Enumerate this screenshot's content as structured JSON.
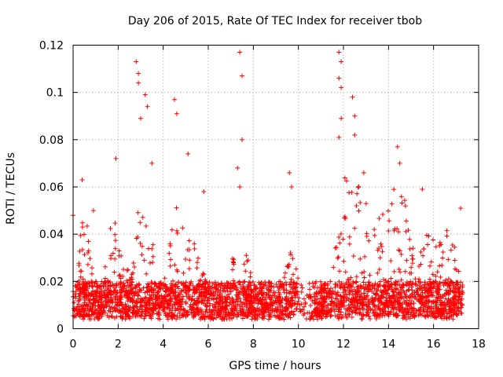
{
  "chart_data": {
    "type": "scatter",
    "title": "Day 206 of 2015, Rate Of TEC Index for receiver tbob",
    "xlabel": "GPS time / hours",
    "ylabel": "ROTI / TECUs",
    "xlim": [
      0,
      18
    ],
    "ylim": [
      0,
      0.12
    ],
    "xticks": [
      0,
      2,
      4,
      6,
      8,
      10,
      12,
      14,
      16,
      18
    ],
    "xtick_labels": [
      "0",
      "2",
      "4",
      "6",
      "8",
      "10",
      "12",
      "14",
      "16",
      "18"
    ],
    "yticks": [
      0,
      0.02,
      0.04,
      0.06,
      0.08,
      0.1,
      0.12
    ],
    "ytick_labels": [
      "0",
      "0.02",
      "0.04",
      "0.06",
      "0.08",
      "0.1",
      "0.12"
    ],
    "grid": true,
    "marker": "+",
    "color": "#ff0000",
    "series": [
      {
        "name": "ROTI",
        "x_range_hours": [
          0,
          17.3
        ],
        "typical_band": [
          0.005,
          0.02
        ],
        "notable_points": [
          {
            "x": 0.0,
            "y": 0.048
          },
          {
            "x": 0.4,
            "y": 0.063
          },
          {
            "x": 0.9,
            "y": 0.05
          },
          {
            "x": 1.9,
            "y": 0.072
          },
          {
            "x": 2.8,
            "y": 0.113
          },
          {
            "x": 2.9,
            "y": 0.108
          },
          {
            "x": 2.9,
            "y": 0.104
          },
          {
            "x": 3.2,
            "y": 0.099
          },
          {
            "x": 3.3,
            "y": 0.094
          },
          {
            "x": 3.0,
            "y": 0.089
          },
          {
            "x": 3.5,
            "y": 0.07
          },
          {
            "x": 4.5,
            "y": 0.097
          },
          {
            "x": 4.6,
            "y": 0.091
          },
          {
            "x": 5.1,
            "y": 0.074
          },
          {
            "x": 5.8,
            "y": 0.058
          },
          {
            "x": 7.4,
            "y": 0.117
          },
          {
            "x": 7.5,
            "y": 0.107
          },
          {
            "x": 7.5,
            "y": 0.08
          },
          {
            "x": 7.3,
            "y": 0.068
          },
          {
            "x": 7.4,
            "y": 0.06
          },
          {
            "x": 9.6,
            "y": 0.066
          },
          {
            "x": 9.7,
            "y": 0.06
          },
          {
            "x": 11.8,
            "y": 0.117
          },
          {
            "x": 11.9,
            "y": 0.113
          },
          {
            "x": 11.8,
            "y": 0.106
          },
          {
            "x": 11.9,
            "y": 0.102
          },
          {
            "x": 11.9,
            "y": 0.089
          },
          {
            "x": 11.8,
            "y": 0.081
          },
          {
            "x": 12.4,
            "y": 0.098
          },
          {
            "x": 12.5,
            "y": 0.09
          },
          {
            "x": 12.5,
            "y": 0.082
          },
          {
            "x": 12.9,
            "y": 0.066
          },
          {
            "x": 14.4,
            "y": 0.077
          },
          {
            "x": 14.5,
            "y": 0.07
          },
          {
            "x": 15.5,
            "y": 0.059
          },
          {
            "x": 17.2,
            "y": 0.051
          }
        ]
      }
    ]
  }
}
